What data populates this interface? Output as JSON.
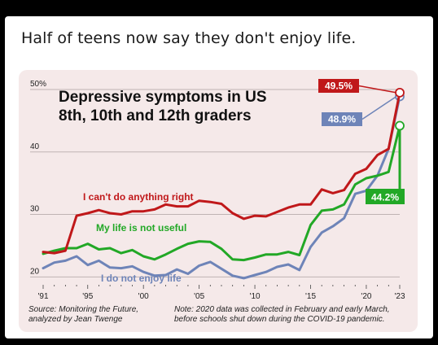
{
  "post": {
    "text": "Half of teens now say they don't enjoy life."
  },
  "chart_data": {
    "type": "line",
    "title_lines": [
      "Depressive symptoms in US",
      "8th, 10th and 12th graders"
    ],
    "x_tick_labels": [
      "'91",
      "'95",
      "'00",
      "'05",
      "'10",
      "'15",
      "'20",
      "'23"
    ],
    "y_tick_labels": [
      "50%",
      "40",
      "30",
      "20"
    ],
    "ylim": [
      19,
      50
    ],
    "xlim": [
      1991,
      2023
    ],
    "grid": "horizontal",
    "source_lines": [
      "Source: Monitoring the Future,",
      "analyzed by Jean Twenge"
    ],
    "note_lines": [
      "Note: 2020 data was collected in February and early March,",
      "before schools shut down during the COVID-19 pandemic."
    ],
    "series": [
      {
        "name": "I can't do anything right",
        "color": "#c0181a",
        "end_label": "49.5%",
        "x": [
          1991,
          1992,
          1993,
          1994,
          1995,
          1996,
          1997,
          1998,
          1999,
          2000,
          2001,
          2002,
          2003,
          2004,
          2005,
          2006,
          2007,
          2008,
          2009,
          2010,
          2011,
          2012,
          2013,
          2014,
          2015,
          2016,
          2017,
          2018,
          2019,
          2020,
          2021,
          2022,
          2023
        ],
        "values": [
          24,
          23.8,
          24.2,
          29.8,
          30.2,
          30.7,
          30.2,
          30,
          30.5,
          30.5,
          30.8,
          31.6,
          31.3,
          31.3,
          32.2,
          32,
          31.7,
          30.2,
          29.3,
          29.8,
          29.7,
          30.4,
          31.1,
          31.6,
          31.6,
          34,
          33.4,
          33.9,
          36.5,
          37.3,
          39.5,
          40.5,
          49.5
        ]
      },
      {
        "name": "My life is not useful",
        "color": "#22a826",
        "end_label": "44.2%",
        "x": [
          1991,
          1992,
          1993,
          1994,
          1995,
          1996,
          1997,
          1998,
          1999,
          2000,
          2001,
          2002,
          2003,
          2004,
          2005,
          2006,
          2007,
          2008,
          2009,
          2010,
          2011,
          2012,
          2013,
          2014,
          2015,
          2016,
          2017,
          2018,
          2019,
          2020,
          2021,
          2022,
          2023
        ],
        "values": [
          23.7,
          24.2,
          24.6,
          24.6,
          25.3,
          24.4,
          24.6,
          23.8,
          24.3,
          23.3,
          22.8,
          23.6,
          24.5,
          25.3,
          25.7,
          25.6,
          24.5,
          22.8,
          22.7,
          23.1,
          23.6,
          23.6,
          24,
          23.5,
          28.3,
          30.6,
          30.8,
          31.6,
          34.8,
          35.8,
          36.2,
          36.8,
          44.2
        ]
      },
      {
        "name": "I do not enjoy life",
        "color": "#6e84b8",
        "end_label": "48.9%",
        "x": [
          1991,
          1992,
          1993,
          1994,
          1995,
          1996,
          1997,
          1998,
          1999,
          2000,
          2001,
          2002,
          2003,
          2004,
          2005,
          2006,
          2007,
          2008,
          2009,
          2010,
          2011,
          2012,
          2013,
          2014,
          2015,
          2016,
          2017,
          2018,
          2019,
          2020,
          2021,
          2022,
          2023
        ],
        "values": [
          21.4,
          22.3,
          22.6,
          23.3,
          21.9,
          22.6,
          21.5,
          21.4,
          21.7,
          20.8,
          20.2,
          20.3,
          21.2,
          20.5,
          21.8,
          22.4,
          21.3,
          20.2,
          19.8,
          20.3,
          20.8,
          21.6,
          22,
          21.1,
          24.8,
          27.1,
          28.1,
          29.4,
          33.3,
          33.8,
          36.2,
          40.5,
          48.9
        ]
      }
    ]
  },
  "theme": {
    "grid_color": "#bfb3b3",
    "tick_color": "#222222"
  }
}
